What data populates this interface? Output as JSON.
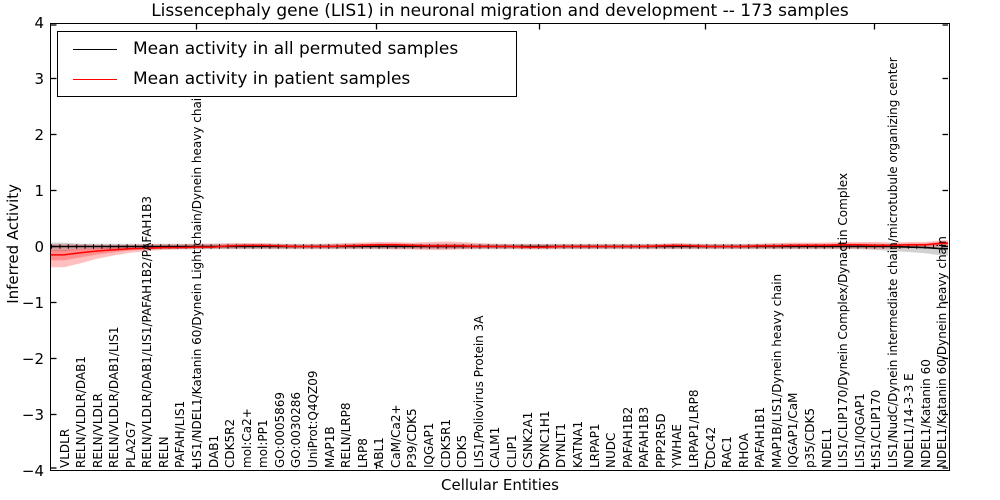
{
  "title": "Lissencephaly gene (LIS1) in neuronal migration and development -- 173 samples",
  "axes": {
    "ylabel": "Inferred Activity",
    "xlabel": "Cellular Entities",
    "yticks": [
      4,
      3,
      2,
      1,
      0,
      -1,
      -2,
      -3,
      -4
    ],
    "ylim": [
      -4,
      4
    ],
    "grid": false
  },
  "legend": {
    "position": "upper left",
    "items": [
      {
        "label": "Mean activity in all permuted samples",
        "color": "#000000"
      },
      {
        "label": "Mean activity in patient samples",
        "color": "#ff0000"
      }
    ]
  },
  "colors": {
    "permuted_line": "#000000",
    "permuted_band": "#cccccc",
    "patient_line": "#ff0000",
    "patient_band": "#ffbfbf"
  },
  "chart_data": {
    "type": "line",
    "title": "Lissencephaly gene (LIS1) in neuronal migration and development -- 173 samples",
    "xlabel": "Cellular Entities",
    "ylabel": "Inferred Activity",
    "ylim": [
      -4,
      4
    ],
    "legend_position": "upper left",
    "categories": [
      "VLDLR",
      "RELN/VLDLR/DAB1",
      "RELN/VLDLR",
      "RELN/VLDLR/DAB1/LIS1",
      "PLA2G7",
      "RELN/VLDLR/DAB1/LIS1/PAFAH1B2/PAFAH1B3",
      "RELN",
      "PAFAH/LIS1",
      "LIS1/NDEL1/Katanin 60/Dynein Light chain/Dynein heavy chain",
      "DAB1",
      "CDK5R2",
      "mol:Ca2+",
      "mol:PP1",
      "GO:0005869",
      "GO:0030286",
      "UniProt:Q4QZ09",
      "MAP1B",
      "RELN/LRP8",
      "LRP8",
      "ABL1",
      "CaM/Ca2+",
      "P39/CDK5",
      "IQGAP1",
      "CDK5R1",
      "CDK5",
      "LIS1/Poliovirus Protein 3A",
      "CALM1",
      "CLIP1",
      "CSNK2A1",
      "DYNC1H1",
      "DYNLT1",
      "KATNA1",
      "LRPAP1",
      "NUDC",
      "PAFAH1B2",
      "PAFAH1B3",
      "PPP2R5D",
      "YWHAE",
      "LRPAP1/LRP8",
      "CDC42",
      "RAC1",
      "RHOA",
      "PAFAH1B1",
      "MAP1B/LIS1/Dynein heavy chain",
      "IQGAP1/CaM",
      "p35/CDK5",
      "NDEL1",
      "LIS1/CLIP170/Dynein Complex/Dynactin Complex",
      "LIS1/IQGAP1",
      "LIS1/CLIP170",
      "LIS1/NudC/Dynein intermediate chain/microtubule organizing center",
      "NDEL1/14-3-3 E",
      "NDEL1/Katanin 60",
      "NDEL1/Katanin 60/Dynein heavy chain"
    ],
    "series": [
      {
        "name": "Mean activity in all permuted samples",
        "color": "#000000",
        "values": [
          0,
          0,
          0,
          0,
          0,
          0,
          0,
          0,
          0,
          0,
          0,
          0,
          0,
          0,
          0,
          0,
          0,
          0,
          0,
          0,
          0,
          0,
          0,
          0,
          0,
          0,
          0,
          0,
          0,
          0,
          0,
          0,
          0,
          0,
          0,
          0,
          0,
          0,
          0,
          0,
          0,
          0,
          0,
          0,
          0,
          0,
          0,
          0,
          0,
          0,
          0,
          -0.01,
          -0.02,
          -0.04
        ],
        "band_upper": [
          0.07,
          0.05,
          0.05,
          0.05,
          0.05,
          0.05,
          0.05,
          0.05,
          0.05,
          0.05,
          0.05,
          0.05,
          0.05,
          0.05,
          0.05,
          0.05,
          0.05,
          0.05,
          0.05,
          0.05,
          0.05,
          0.05,
          0.05,
          0.05,
          0.05,
          0.05,
          0.05,
          0.05,
          0.05,
          0.05,
          0.05,
          0.05,
          0.05,
          0.05,
          0.05,
          0.05,
          0.05,
          0.05,
          0.05,
          0.05,
          0.05,
          0.05,
          0.05,
          0.05,
          0.05,
          0.05,
          0.05,
          0.05,
          0.05,
          0.05,
          0.05,
          0.05,
          0.05,
          0.07
        ],
        "band_lower": [
          -0.08,
          -0.05,
          -0.05,
          -0.05,
          -0.05,
          -0.05,
          -0.05,
          -0.05,
          -0.05,
          -0.05,
          -0.05,
          -0.05,
          -0.05,
          -0.05,
          -0.05,
          -0.05,
          -0.05,
          -0.05,
          -0.05,
          -0.05,
          -0.05,
          -0.05,
          -0.05,
          -0.05,
          -0.05,
          -0.05,
          -0.05,
          -0.05,
          -0.05,
          -0.05,
          -0.05,
          -0.05,
          -0.05,
          -0.05,
          -0.05,
          -0.05,
          -0.05,
          -0.05,
          -0.05,
          -0.05,
          -0.05,
          -0.05,
          -0.05,
          -0.05,
          -0.05,
          -0.05,
          -0.05,
          -0.05,
          -0.05,
          -0.06,
          -0.08,
          -0.1,
          -0.12,
          -0.16
        ]
      },
      {
        "name": "Mean activity in patient samples",
        "color": "#ff0000",
        "values": [
          -0.15,
          -0.11,
          -0.08,
          -0.06,
          -0.04,
          -0.03,
          -0.02,
          -0.02,
          -0.01,
          -0.01,
          0.01,
          0.02,
          0.02,
          0.01,
          0,
          0,
          0,
          0.01,
          0.02,
          0.03,
          0.03,
          0.02,
          0.01,
          0.01,
          0.01,
          0,
          0,
          0,
          -0.01,
          -0.01,
          0,
          0,
          0,
          0,
          0,
          0,
          0.01,
          0.02,
          0.01,
          0,
          0,
          0,
          0.01,
          0.01,
          0.02,
          0.02,
          0.02,
          0.03,
          0.03,
          0.02,
          0.02,
          0.03,
          0.03,
          0.06
        ],
        "band_upper": [
          0.04,
          0.04,
          0.03,
          0.03,
          0.03,
          0.04,
          0.04,
          0.04,
          0.05,
          0.05,
          0.06,
          0.06,
          0.06,
          0.05,
          0.04,
          0.04,
          0.05,
          0.06,
          0.07,
          0.08,
          0.08,
          0.07,
          0.08,
          0.09,
          0.08,
          0.06,
          0.05,
          0.04,
          0.04,
          0.04,
          0.04,
          0.04,
          0.04,
          0.04,
          0.04,
          0.04,
          0.05,
          0.06,
          0.05,
          0.04,
          0.04,
          0.04,
          0.05,
          0.06,
          0.07,
          0.07,
          0.07,
          0.08,
          0.08,
          0.08,
          0.07,
          0.08,
          0.08,
          0.11
        ],
        "band_lower": [
          -0.37,
          -0.3,
          -0.22,
          -0.16,
          -0.11,
          -0.08,
          -0.06,
          -0.05,
          -0.05,
          -0.04,
          -0.04,
          -0.04,
          -0.04,
          -0.04,
          -0.04,
          -0.04,
          -0.04,
          -0.04,
          -0.04,
          -0.04,
          -0.05,
          -0.05,
          -0.06,
          -0.06,
          -0.05,
          -0.04,
          -0.04,
          -0.04,
          -0.05,
          -0.05,
          -0.04,
          -0.04,
          -0.04,
          -0.04,
          -0.04,
          -0.04,
          -0.04,
          -0.04,
          -0.04,
          -0.04,
          -0.04,
          -0.04,
          -0.04,
          -0.04,
          -0.04,
          -0.04,
          -0.04,
          -0.04,
          -0.04,
          -0.05,
          -0.04,
          -0.03,
          -0.02,
          0.0
        ]
      }
    ]
  }
}
